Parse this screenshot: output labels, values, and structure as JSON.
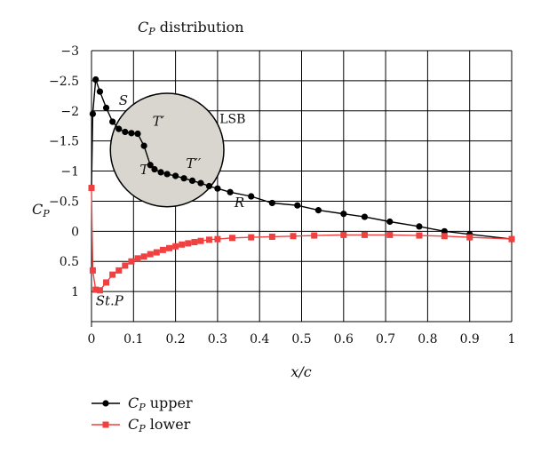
{
  "chart_data": {
    "type": "line",
    "title": "CP distribution",
    "xlabel": "x/c",
    "ylabel": "CP",
    "xlim": [
      0,
      1
    ],
    "ylim": [
      -3,
      1.5
    ],
    "y_inverted": true,
    "grid": true,
    "legend_position": "bottom-left",
    "x_ticks": [
      "0",
      "0.1",
      "0.2",
      "0.3",
      "0.4",
      "0.5",
      "0.6",
      "0.7",
      "0.8",
      "0.9",
      "1"
    ],
    "y_ticks": [
      "−3",
      "−2.5",
      "−2",
      "−1.5",
      "−1",
      "−0.5",
      "0",
      "0.5",
      "1"
    ],
    "series": [
      {
        "name": "CP upper",
        "color": "#000000",
        "marker": "circle",
        "x": [
          0,
          0.003,
          0.01,
          0.02,
          0.035,
          0.05,
          0.065,
          0.08,
          0.095,
          0.11,
          0.125,
          0.14,
          0.15,
          0.165,
          0.18,
          0.2,
          0.22,
          0.24,
          0.26,
          0.28,
          0.3,
          0.33,
          0.38,
          0.43,
          0.49,
          0.54,
          0.6,
          0.65,
          0.71,
          0.78,
          0.84,
          0.9,
          1.0
        ],
        "y": [
          -0.72,
          -1.95,
          -2.52,
          -2.32,
          -2.05,
          -1.82,
          -1.7,
          -1.65,
          -1.63,
          -1.62,
          -1.42,
          -1.1,
          -1.03,
          -0.98,
          -0.95,
          -0.92,
          -0.88,
          -0.84,
          -0.8,
          -0.75,
          -0.71,
          -0.65,
          -0.58,
          -0.47,
          -0.43,
          -0.35,
          -0.29,
          -0.24,
          -0.16,
          -0.08,
          0,
          0.05,
          0.13
        ]
      },
      {
        "name": "CP lower",
        "color": "#f04040",
        "marker": "square",
        "x": [
          0.0,
          0.003,
          0.01,
          0.02,
          0.035,
          0.05,
          0.065,
          0.08,
          0.095,
          0.11,
          0.125,
          0.14,
          0.155,
          0.17,
          0.185,
          0.2,
          0.215,
          0.23,
          0.245,
          0.26,
          0.28,
          0.3,
          0.335,
          0.38,
          0.43,
          0.48,
          0.53,
          0.6,
          0.65,
          0.71,
          0.78,
          0.84,
          0.9,
          1.0
        ],
        "y": [
          -0.72,
          0.65,
          0.97,
          0.98,
          0.85,
          0.72,
          0.65,
          0.57,
          0.5,
          0.45,
          0.42,
          0.38,
          0.35,
          0.31,
          0.28,
          0.25,
          0.22,
          0.2,
          0.18,
          0.16,
          0.14,
          0.13,
          0.11,
          0.1,
          0.09,
          0.08,
          0.07,
          0.06,
          0.06,
          0.06,
          0.07,
          0.08,
          0.1,
          0.13
        ]
      }
    ],
    "annotations": [
      {
        "text": "S",
        "x": 0.065,
        "y": -2.1
      },
      {
        "text": "T′",
        "x": 0.145,
        "y": -1.75
      },
      {
        "text": "T",
        "x": 0.115,
        "y": -0.95
      },
      {
        "text": "T′′",
        "x": 0.225,
        "y": -1.05
      },
      {
        "text": "LSB",
        "x": 0.305,
        "y": -1.8
      },
      {
        "text": "R",
        "x": 0.34,
        "y": -0.4
      },
      {
        "text": "St.P",
        "x": 0.01,
        "y": 1.23
      }
    ],
    "lsb_circle": {
      "cx": 0.18,
      "cy": -1.35,
      "r_x": 0.135
    }
  }
}
